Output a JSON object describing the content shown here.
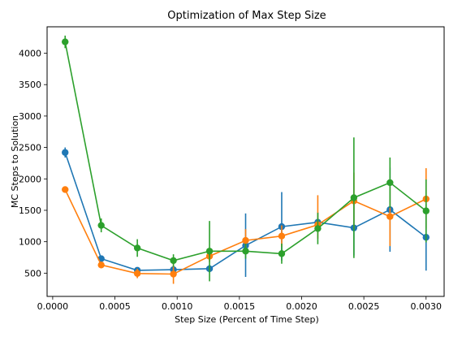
{
  "chart_data": {
    "type": "line",
    "title": "Optimization of Max Step Size",
    "xlabel": "Step Size (Percent of Time Step)",
    "ylabel": "MC Steps to Solution",
    "xlim": [
      -4.5e-05,
      0.003145
    ],
    "ylim": [
      130,
      4420
    ],
    "xticks": [
      "0.0000",
      "0.0005",
      "0.0010",
      "0.0015",
      "0.0020",
      "0.0025",
      "0.0030"
    ],
    "xtick_values": [
      0.0,
      0.0005,
      0.001,
      0.0015,
      0.002,
      0.0025,
      0.003
    ],
    "yticks": [
      "500",
      "1000",
      "1500",
      "2000",
      "2500",
      "3000",
      "3500",
      "4000"
    ],
    "ytick_values": [
      500,
      1000,
      1500,
      2000,
      2500,
      3000,
      3500,
      4000
    ],
    "grid": false,
    "legend": false,
    "x": [
      0.0001,
      0.00039,
      0.00068,
      0.00097,
      0.00126,
      0.00155,
      0.00184,
      0.00213,
      0.00242,
      0.00271,
      0.003
    ],
    "series": [
      {
        "color": "#1f77b4",
        "values": [
          2420,
          730,
          545,
          555,
          570,
          940,
          1240,
          1310,
          1220,
          1510,
          1070
        ],
        "err_low": [
          2340,
          680,
          510,
          520,
          510,
          440,
          700,
          1150,
          780,
          840,
          540
        ],
        "err_high": [
          2500,
          780,
          580,
          590,
          630,
          1450,
          1790,
          1470,
          1660,
          2180,
          1600
        ]
      },
      {
        "color": "#ff7f0e",
        "values": [
          1830,
          630,
          495,
          485,
          770,
          1020,
          1090,
          1270,
          1650,
          1400,
          1680
        ],
        "err_low": [
          1800,
          580,
          420,
          330,
          680,
          840,
          920,
          1050,
          1200,
          930,
          1210
        ],
        "err_high": [
          1860,
          680,
          570,
          640,
          860,
          1200,
          1260,
          1740,
          2100,
          1870,
          2170
        ]
      },
      {
        "color": "#2ca02c",
        "values": [
          4180,
          1260,
          900,
          700,
          850,
          850,
          810,
          1210,
          1700,
          1940,
          1490
        ],
        "err_low": [
          4080,
          1150,
          760,
          600,
          370,
          730,
          650,
          960,
          740,
          1540,
          990
        ],
        "err_high": [
          4280,
          1370,
          1040,
          800,
          1330,
          970,
          970,
          1460,
          2660,
          2340,
          1990
        ]
      }
    ]
  }
}
